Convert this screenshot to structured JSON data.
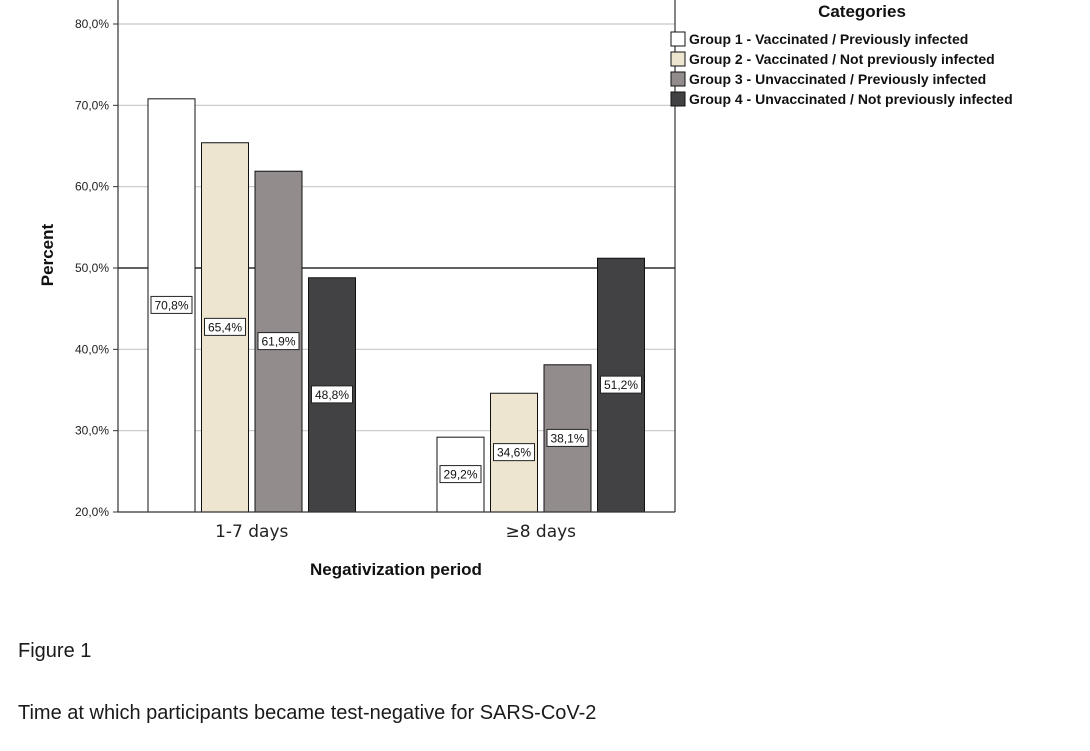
{
  "chart_data": {
    "type": "bar",
    "xlabel": "Negativization period",
    "ylabel": "Percent",
    "ylim": [
      20,
      80
    ],
    "yticks": [
      "20,0%",
      "30,0%",
      "40,0%",
      "50,0%",
      "60,0%",
      "70,0%",
      "80,0%"
    ],
    "reference_line": 50,
    "grid": true,
    "legend_title": "Categories",
    "legend_position": "top-right",
    "categories": [
      "1-7 days",
      "≥8 days"
    ],
    "series": [
      {
        "name": "Group 1 - Vaccinated / Previously infected",
        "color": "#ffffff",
        "values": [
          70.8,
          29.2
        ],
        "labels": [
          "70,8%",
          "29,2%"
        ]
      },
      {
        "name": "Group 2 - Vaccinated / Not previously infected",
        "color": "#ede5d0",
        "values": [
          65.4,
          34.6
        ],
        "labels": [
          "65,4%",
          "34,6%"
        ]
      },
      {
        "name": "Group 3 - Unvaccinated / Previously infected",
        "color": "#928d8c",
        "values": [
          61.9,
          38.1
        ],
        "labels": [
          "61,9%",
          "38,1%"
        ]
      },
      {
        "name": "Group 4 - Unvaccinated / Not previously infected",
        "color": "#424244",
        "values": [
          48.8,
          51.2
        ],
        "labels": [
          "48,8%",
          "51,2%"
        ]
      }
    ]
  },
  "figure": {
    "label": "Figure 1",
    "caption": "Time at which participants became test-negative for SARS-CoV-2"
  }
}
